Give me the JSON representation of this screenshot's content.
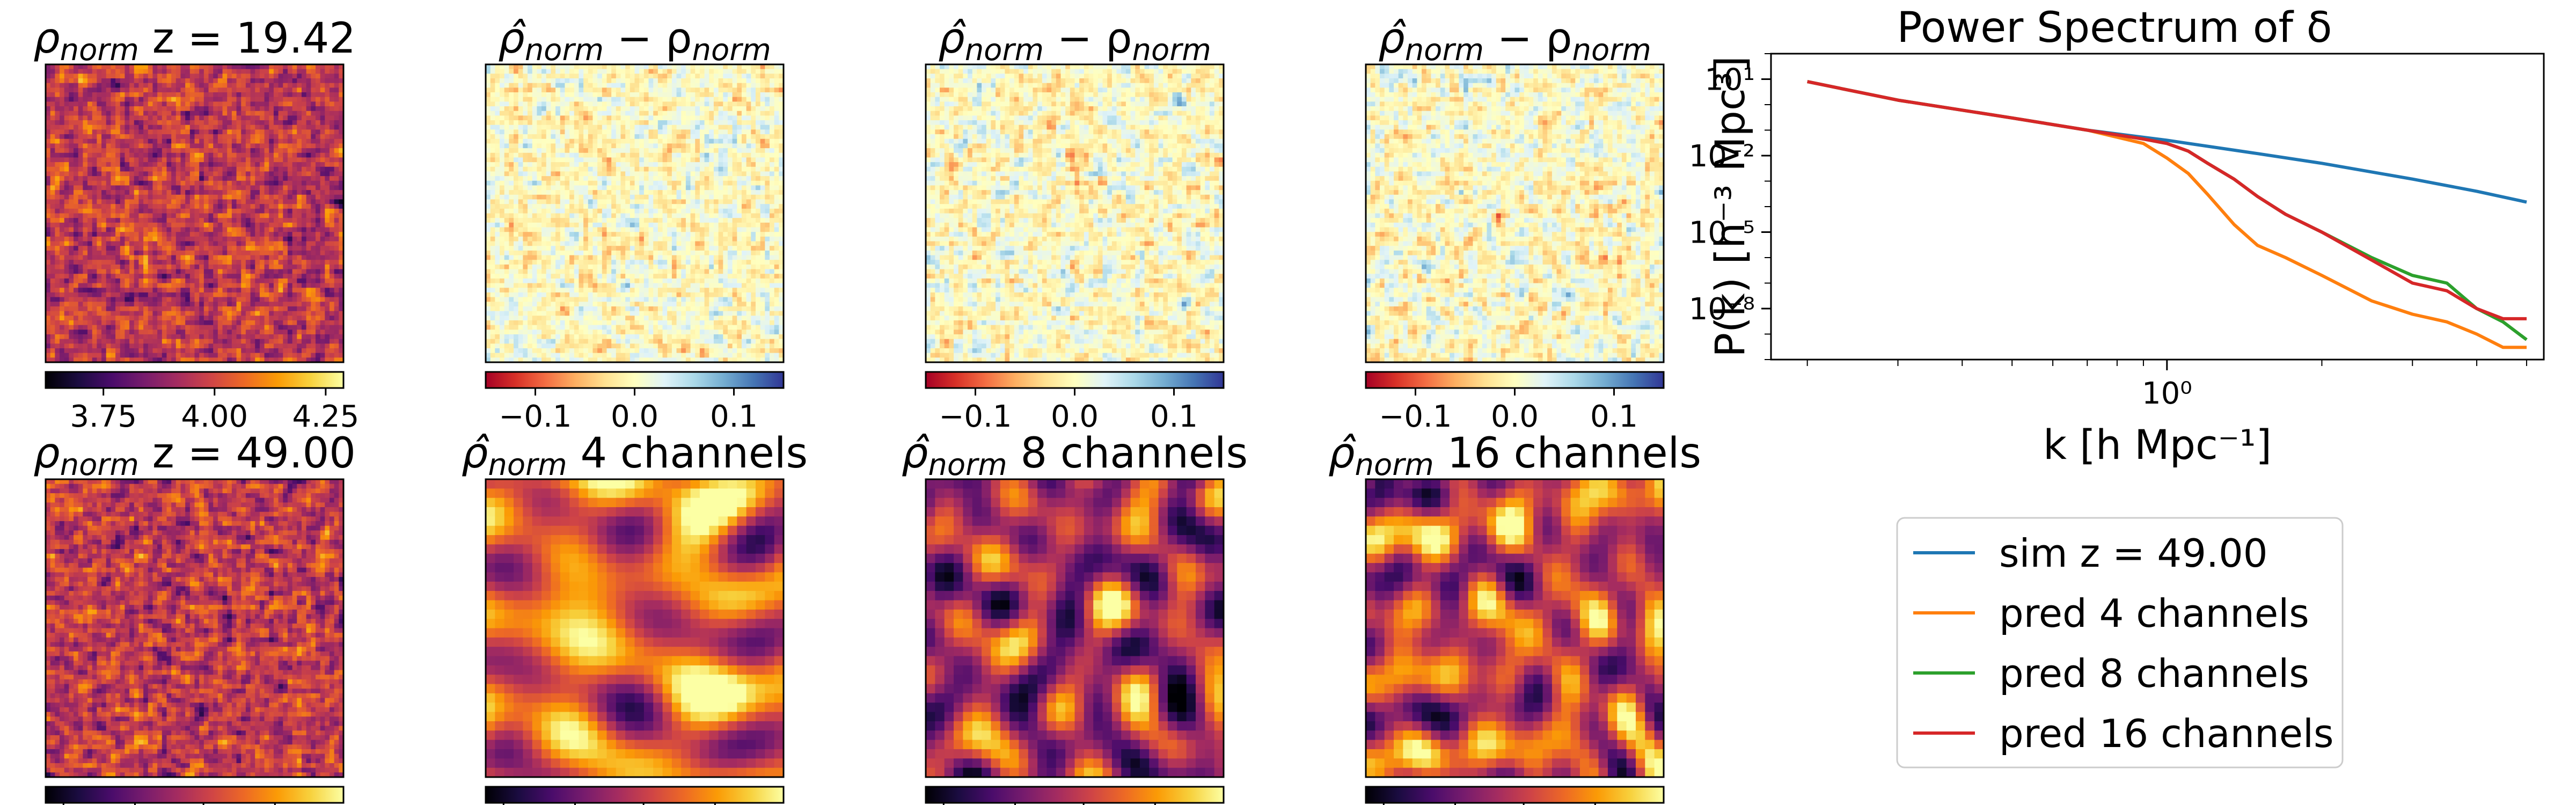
{
  "colors": {
    "inferno": [
      "#000004",
      "#1b0c41",
      "#4a0c6b",
      "#781c6d",
      "#a52c60",
      "#cf4446",
      "#ed6925",
      "#fb9b06",
      "#f7d13d",
      "#fcffa4"
    ],
    "rdylbu": [
      "#a50026",
      "#d73027",
      "#f46d43",
      "#fdae61",
      "#fee090",
      "#ffffbf",
      "#e0f3f8",
      "#abd9e9",
      "#74add1",
      "#4575b4",
      "#313695"
    ]
  },
  "panels": [
    {
      "id": "p1",
      "title_main": "ρ",
      "title_sub": "norm",
      "title_rest": " z = 19.42",
      "hat": false,
      "cmap": "inferno",
      "style": "noise",
      "row": 0,
      "col": 0,
      "colorbar_ticks": [
        "3.75",
        "4.00",
        "4.25"
      ],
      "colorbar_range": [
        3.62,
        4.29
      ],
      "colorbar_tick_values": [
        3.75,
        4.0,
        4.25
      ]
    },
    {
      "id": "p2",
      "title_main": "ρ̂",
      "title_sub": "norm",
      "title_rest": " − ρ",
      "title_sub2": "norm",
      "hat": true,
      "cmap": "rdylbu",
      "style": "diff",
      "row": 0,
      "col": 1,
      "colorbar_ticks": [
        "−0.1",
        "0.0",
        "0.1"
      ],
      "colorbar_range": [
        -0.15,
        0.15
      ],
      "colorbar_tick_values": [
        -0.1,
        0.0,
        0.1
      ]
    },
    {
      "id": "p3",
      "title_main": "ρ̂",
      "title_sub": "norm",
      "title_rest": " − ρ",
      "title_sub2": "norm",
      "hat": true,
      "cmap": "rdylbu",
      "style": "diff",
      "row": 0,
      "col": 2,
      "colorbar_ticks": [
        "−0.1",
        "0.0",
        "0.1"
      ],
      "colorbar_range": [
        -0.15,
        0.15
      ],
      "colorbar_tick_values": [
        -0.1,
        0.0,
        0.1
      ]
    },
    {
      "id": "p4",
      "title_main": "ρ̂",
      "title_sub": "norm",
      "title_rest": " − ρ",
      "title_sub2": "norm",
      "hat": true,
      "cmap": "rdylbu",
      "style": "diff",
      "row": 0,
      "col": 3,
      "colorbar_ticks": [
        "−0.1",
        "0.0",
        "0.1"
      ],
      "colorbar_range": [
        -0.15,
        0.15
      ],
      "colorbar_tick_values": [
        -0.1,
        0.0,
        0.1
      ]
    },
    {
      "id": "p5",
      "title_main": "ρ",
      "title_sub": "norm",
      "title_rest": " z = 49.00",
      "hat": false,
      "cmap": "inferno",
      "style": "noise",
      "row": 1,
      "col": 0,
      "colorbar_ticks": [],
      "colorbar_range": [
        0,
        1
      ],
      "colorbar_tick_values": []
    },
    {
      "id": "p6",
      "title_main": "ρ̂",
      "title_sub": "norm",
      "title_rest": " 4 channels",
      "hat": true,
      "cmap": "inferno",
      "style": "smooth4",
      "row": 1,
      "col": 1,
      "colorbar_ticks": [],
      "colorbar_range": [
        0,
        1
      ],
      "colorbar_tick_values": []
    },
    {
      "id": "p7",
      "title_main": "ρ̂",
      "title_sub": "norm",
      "title_rest": " 8 channels",
      "hat": true,
      "cmap": "inferno",
      "style": "smooth8",
      "row": 1,
      "col": 2,
      "colorbar_ticks": [],
      "colorbar_range": [
        0,
        1
      ],
      "colorbar_tick_values": []
    },
    {
      "id": "p8",
      "title_main": "ρ̂",
      "title_sub": "norm",
      "title_rest": " 16 channels",
      "hat": true,
      "cmap": "inferno",
      "style": "smooth16",
      "row": 1,
      "col": 3,
      "colorbar_ticks": [],
      "colorbar_range": [
        0,
        1
      ],
      "colorbar_tick_values": []
    }
  ],
  "chart_data": {
    "type": "line",
    "title": "Power Spectrum of δ",
    "xlabel": "k [h Mpc⁻¹]",
    "ylabel": "P(k) [h⁻³ Mpc³]",
    "xscale": "log",
    "yscale": "log",
    "xlim": [
      0.17,
      5.4
    ],
    "ylim": [
      1e-10,
      100
    ],
    "x_ticks": [
      {
        "value": 1,
        "label": "10⁰"
      }
    ],
    "y_ticks": [
      {
        "value": 10,
        "label": "10¹"
      },
      {
        "value": 0.01,
        "label": "10⁻²"
      },
      {
        "value": 1e-05,
        "label": "10⁻⁵"
      },
      {
        "value": 1e-08,
        "label": "10⁻⁸"
      }
    ],
    "legend_position": "below",
    "series": [
      {
        "name": "sim z = 49.00",
        "color": "#1f77b4",
        "x": [
          0.2,
          0.3,
          0.5,
          0.7,
          1.0,
          1.5,
          2.0,
          3.0,
          4.0,
          5.0
        ],
        "y": [
          8,
          1.5,
          0.3,
          0.1,
          0.04,
          0.012,
          0.005,
          0.0012,
          0.0004,
          0.00015
        ]
      },
      {
        "name": "pred 4 channels",
        "color": "#ff7f0e",
        "x": [
          0.2,
          0.3,
          0.5,
          0.7,
          0.9,
          1.0,
          1.1,
          1.2,
          1.35,
          1.5,
          1.7,
          2.0,
          2.5,
          3.0,
          3.5,
          4.0,
          4.5,
          5.0
        ],
        "y": [
          8,
          1.5,
          0.3,
          0.1,
          0.03,
          0.008,
          0.002,
          0.0003,
          2e-05,
          3e-06,
          1e-06,
          2e-07,
          2e-08,
          6e-09,
          3e-09,
          1e-09,
          3e-10,
          3e-10
        ]
      },
      {
        "name": "pred 8 channels",
        "color": "#2ca02c",
        "x": [
          0.2,
          0.3,
          0.5,
          0.7,
          0.9,
          1.0,
          1.1,
          1.2,
          1.35,
          1.5,
          1.7,
          2.0,
          2.5,
          3.0,
          3.5,
          4.0,
          4.5,
          5.0
        ],
        "y": [
          8,
          1.5,
          0.3,
          0.1,
          0.045,
          0.03,
          0.015,
          0.005,
          0.0012,
          0.00025,
          5e-05,
          1e-05,
          1e-06,
          2e-07,
          1e-07,
          1e-08,
          3e-09,
          6e-10
        ]
      },
      {
        "name": "pred 16 channels",
        "color": "#d62728",
        "x": [
          0.2,
          0.3,
          0.5,
          0.7,
          0.9,
          1.0,
          1.1,
          1.2,
          1.35,
          1.5,
          1.7,
          2.0,
          2.5,
          3.0,
          3.5,
          4.0,
          4.5,
          5.0
        ],
        "y": [
          8,
          1.5,
          0.3,
          0.1,
          0.045,
          0.03,
          0.015,
          0.005,
          0.0012,
          0.00025,
          5e-05,
          1e-05,
          8e-07,
          1e-07,
          5e-08,
          1e-08,
          4e-09,
          4e-09
        ]
      }
    ]
  }
}
